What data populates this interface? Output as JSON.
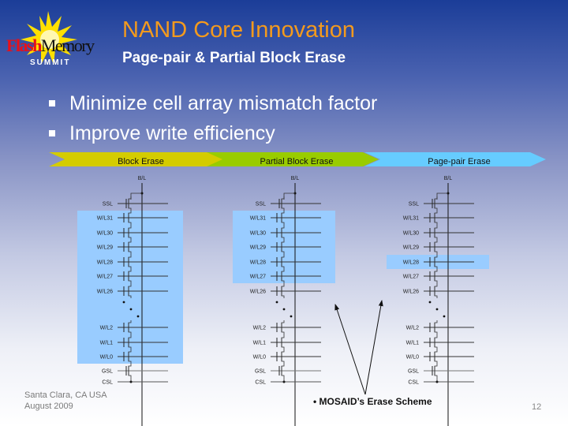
{
  "logo": {
    "text_flash": "Flash",
    "text_memory": "Memory",
    "text_summit": "SUMMIT"
  },
  "header": {
    "title": "NAND Core Innovation",
    "subtitle": "Page-pair & Partial Block Erase"
  },
  "bullets": [
    "Minimize cell array mismatch factor",
    "Improve write efficiency"
  ],
  "chevrons": [
    {
      "label": "Block Erase",
      "color": "#d4cc00"
    },
    {
      "label": "Partial Block Erase",
      "color": "#99cc00"
    },
    {
      "label": "Page-pair Erase",
      "color": "#66ccff"
    }
  ],
  "diagram": {
    "bitline_label": "B/L",
    "rows": [
      "SSL",
      "W/L31",
      "W/L30",
      "W/L29",
      "W/L28",
      "W/L27",
      "W/L26",
      "W/L2",
      "W/L1",
      "W/L0",
      "GSL",
      "CSL"
    ],
    "highlight_color": "#99ccff",
    "columns": [
      {
        "highlighted_rows": [
          "W/L31",
          "W/L0"
        ]
      },
      {
        "highlighted_rows": [
          "W/L31",
          "W/L27"
        ]
      },
      {
        "highlighted_rows": [
          "W/L28",
          "W/L28"
        ]
      }
    ]
  },
  "note": "MOSAID’s Erase Scheme",
  "footer": {
    "location": "Santa Clara, CA  USA",
    "date": "August 2009",
    "page": "12"
  }
}
